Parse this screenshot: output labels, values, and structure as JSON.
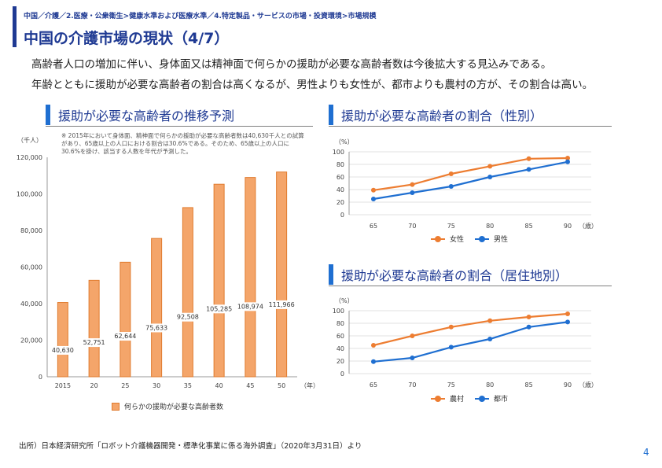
{
  "breadcrumb": "中国／介護／2.医療・公衆衛生>健康水準および医療水準／4.特定製品・サービスの市場・投資環境>市場規模",
  "page_title": "中国の介護市場の現状（4/7）",
  "body": {
    "line1": "高齢者人口の増加に伴い、身体面又は精神面で何らかの援助が必要な高齢者数は今後拡大する見込みである。",
    "line2": "年齢とともに援助が必要な高齢者の割合は高くなるが、男性よりも女性が、都市よりも農村の方が、その割合は高い。"
  },
  "source": "出所）日本経済研究所「ロボット介護機器開発・標準化事業に係る海外調査」（2020年3月31日）より",
  "page_number": "4",
  "colors": {
    "orange": "#ed7d31",
    "blue": "#1f6fd1",
    "bar_fill": "#f4a56a",
    "bar_stroke": "#e07b2e"
  },
  "chart_data": [
    {
      "id": "projection",
      "type": "bar",
      "title": "援助が必要な高齢者の推移予測",
      "ylabel": "（千人）",
      "xunit": "（年）",
      "note": "※ 2015年において身体面、精神面で何らかの援助が必要な高齢者数は40,630千人との試算があり、65歳以上の人口における割合は30.6%である。そのため、65歳以上の人口に30.6%を掛け、該当する人数を年代が予測した。",
      "categories": [
        "2015",
        "20",
        "25",
        "30",
        "35",
        "40",
        "45",
        "50"
      ],
      "values": [
        40630,
        52751,
        62644,
        75633,
        92508,
        105285,
        108974,
        111966
      ],
      "value_labels": [
        "40,630",
        "52,751",
        "62,644",
        "75,633",
        "92,508",
        "105,285",
        "108,974",
        "111,966"
      ],
      "ylim": [
        0,
        120000
      ],
      "yticks": [
        "0",
        "20,000",
        "40,000",
        "60,000",
        "80,000",
        "100,000",
        "120,000"
      ],
      "legend": [
        "何らかの援助が必要な高齢者数"
      ]
    },
    {
      "id": "gender",
      "type": "line",
      "title": "援助が必要な高齢者の割合（性別）",
      "ylabel": "（%）",
      "xunit": "（歳）",
      "x": [
        "65",
        "70",
        "75",
        "80",
        "85",
        "90"
      ],
      "ylim": [
        0,
        100
      ],
      "yticks": [
        "0",
        "20",
        "40",
        "60",
        "80",
        "100"
      ],
      "series": [
        {
          "name": "女性",
          "color": "#ed7d31",
          "values": [
            39,
            48,
            65,
            77,
            89,
            90
          ]
        },
        {
          "name": "男性",
          "color": "#1f6fd1",
          "values": [
            25,
            35,
            45,
            60,
            72,
            84
          ]
        }
      ]
    },
    {
      "id": "residence",
      "type": "line",
      "title": "援助が必要な高齢者の割合（居住地別）",
      "ylabel": "（%）",
      "xunit": "（歳）",
      "x": [
        "65",
        "70",
        "75",
        "80",
        "85",
        "90"
      ],
      "ylim": [
        0,
        100
      ],
      "yticks": [
        "0",
        "20",
        "40",
        "60",
        "80",
        "100"
      ],
      "series": [
        {
          "name": "農村",
          "color": "#ed7d31",
          "values": [
            45,
            60,
            74,
            84,
            90,
            95
          ]
        },
        {
          "name": "都市",
          "color": "#1f6fd1",
          "values": [
            19,
            25,
            42,
            55,
            74,
            82
          ]
        }
      ]
    }
  ]
}
